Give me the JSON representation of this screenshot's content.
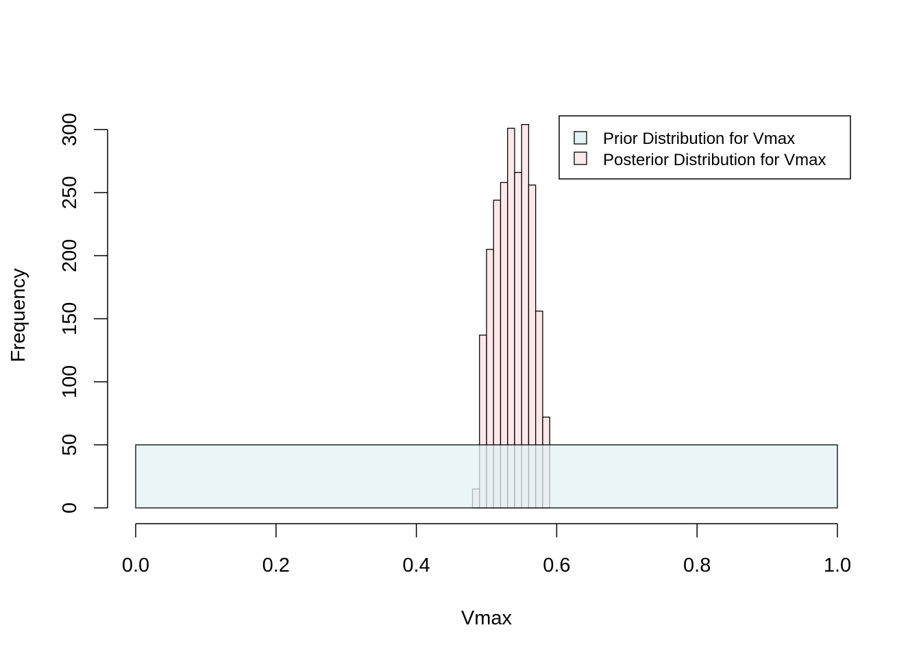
{
  "chart_data": {
    "type": "bar",
    "title": "",
    "xlabel": "Vmax",
    "ylabel": "Frequency",
    "xlim": [
      0,
      1
    ],
    "ylim": [
      0,
      300
    ],
    "x_ticks": [
      "0.0",
      "0.2",
      "0.4",
      "0.6",
      "0.8",
      "1.0"
    ],
    "y_ticks": [
      "0",
      "50",
      "100",
      "150",
      "200",
      "250",
      "300"
    ],
    "grid": false,
    "legend": {
      "position": "top-right",
      "entries": [
        {
          "label": "Prior Distribution for Vmax",
          "color": "#e2f1f4"
        },
        {
          "label": "Posterior Distribution for Vmax",
          "color": "#ffe8ea"
        }
      ]
    },
    "series": [
      {
        "name": "Prior Distribution for Vmax",
        "color": "#e2f1f4",
        "bins": [
          {
            "x0": 0.0,
            "x1": 1.0,
            "count": 50
          }
        ]
      },
      {
        "name": "Posterior Distribution for Vmax",
        "color": "#ffe8ea",
        "bins": [
          {
            "x0": 0.48,
            "x1": 0.49,
            "count": 15
          },
          {
            "x0": 0.49,
            "x1": 0.5,
            "count": 137
          },
          {
            "x0": 0.5,
            "x1": 0.51,
            "count": 205
          },
          {
            "x0": 0.51,
            "x1": 0.52,
            "count": 244
          },
          {
            "x0": 0.52,
            "x1": 0.53,
            "count": 258
          },
          {
            "x0": 0.53,
            "x1": 0.54,
            "count": 301
          },
          {
            "x0": 0.54,
            "x1": 0.55,
            "count": 266
          },
          {
            "x0": 0.55,
            "x1": 0.56,
            "count": 304
          },
          {
            "x0": 0.56,
            "x1": 0.57,
            "count": 256
          },
          {
            "x0": 0.57,
            "x1": 0.58,
            "count": 156
          },
          {
            "x0": 0.58,
            "x1": 0.59,
            "count": 72
          }
        ]
      }
    ]
  }
}
